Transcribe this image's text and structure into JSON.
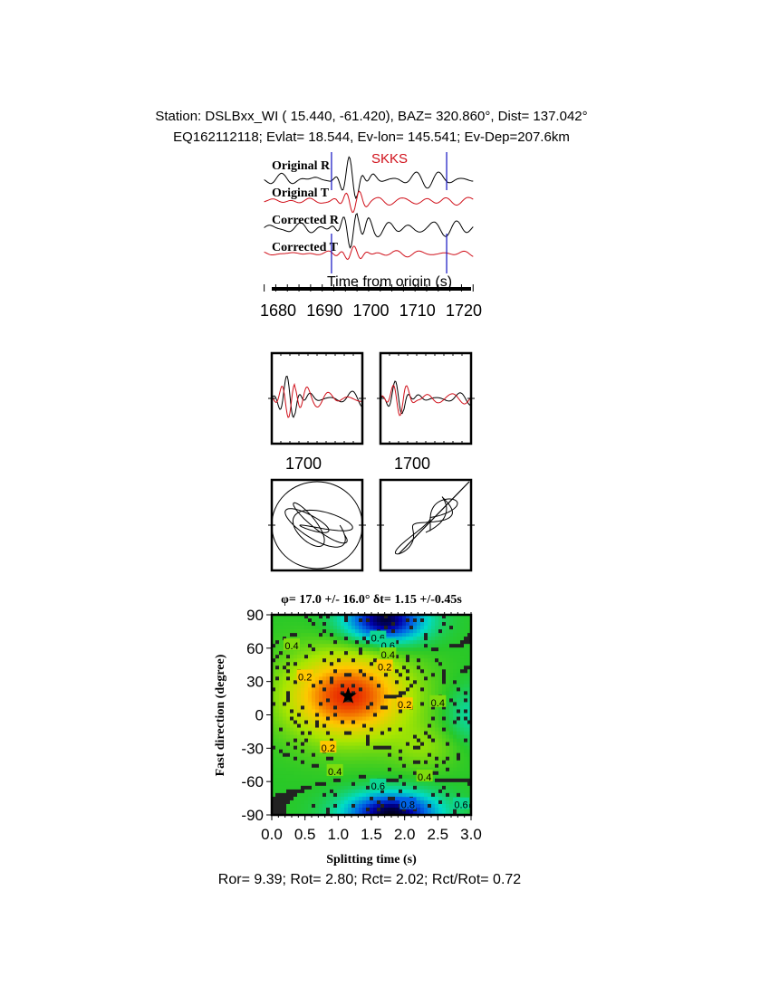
{
  "header": {
    "line1": "Station: DSLBxx_WI (  15.440,  -61.420), BAZ=  320.860°, Dist=  137.042°",
    "line2": "EQ162112118; Evlat=  18.544, Ev-lon= 145.541; Ev-Dep=207.6km"
  },
  "chart_data": [
    {
      "type": "line",
      "phase_label": "SKKS",
      "trace_labels": [
        "Original R",
        "Original T",
        "Corrected R",
        "Corrected T"
      ],
      "trace_colors": [
        "#000000",
        "#d0101a",
        "#000000",
        "#d0101a"
      ],
      "xlabel": "Time from origin (s)",
      "xlim": [
        1677,
        1722
      ],
      "xticks": [
        1680,
        1690,
        1700,
        1710,
        1720
      ],
      "window_markers": [
        1691.5,
        1716.3
      ],
      "marker_color": "#1010c0"
    },
    {
      "type": "line",
      "panel": "waveform-comparison",
      "xticks": [
        1700
      ],
      "colors": [
        "#000000",
        "#d0101a"
      ]
    },
    {
      "type": "scatter",
      "panel": "particle-motion"
    },
    {
      "type": "heatmap",
      "title": "φ= 17.0 +/- 16.0° δt= 1.15 +/-0.45s",
      "xlabel": "Splitting time (s)",
      "ylabel": "Fast direction (degree)",
      "xlim": [
        0,
        3
      ],
      "ylim": [
        -90,
        90
      ],
      "xticks": [
        "0.0",
        "0.5",
        "1.0",
        "1.5",
        "2.0",
        "2.5",
        "3.0"
      ],
      "yticks": [
        "90",
        "60",
        "30",
        "0",
        "-30",
        "-60",
        "-90"
      ],
      "best_fit": {
        "dt": 1.15,
        "phi": 17.0
      },
      "contour_labels": [
        {
          "text": "0.6",
          "t": 1.6,
          "phi": 70
        },
        {
          "text": "0.6",
          "t": 1.75,
          "phi": 63
        },
        {
          "text": "0.4",
          "t": 1.75,
          "phi": 55
        },
        {
          "text": "0.2",
          "t": 1.7,
          "phi": 44
        },
        {
          "text": "0.4",
          "t": 0.3,
          "phi": 63
        },
        {
          "text": "0.2",
          "t": 0.5,
          "phi": 35
        },
        {
          "text": "0.2",
          "t": 2.0,
          "phi": 10
        },
        {
          "text": "0.4",
          "t": 2.5,
          "phi": 12
        },
        {
          "text": "0.2",
          "t": 0.85,
          "phi": -29
        },
        {
          "text": "0.4",
          "t": 0.95,
          "phi": -50
        },
        {
          "text": "0.6",
          "t": 1.6,
          "phi": -63
        },
        {
          "text": "0.4",
          "t": 2.3,
          "phi": -55
        },
        {
          "text": "0.8",
          "t": 2.05,
          "phi": -80
        },
        {
          "text": "0.6",
          "t": 2.85,
          "phi": -80
        }
      ]
    }
  ],
  "footer": "Ror= 9.39; Rot= 2.80; Rct= 2.02; Rct/Rot= 0.72"
}
